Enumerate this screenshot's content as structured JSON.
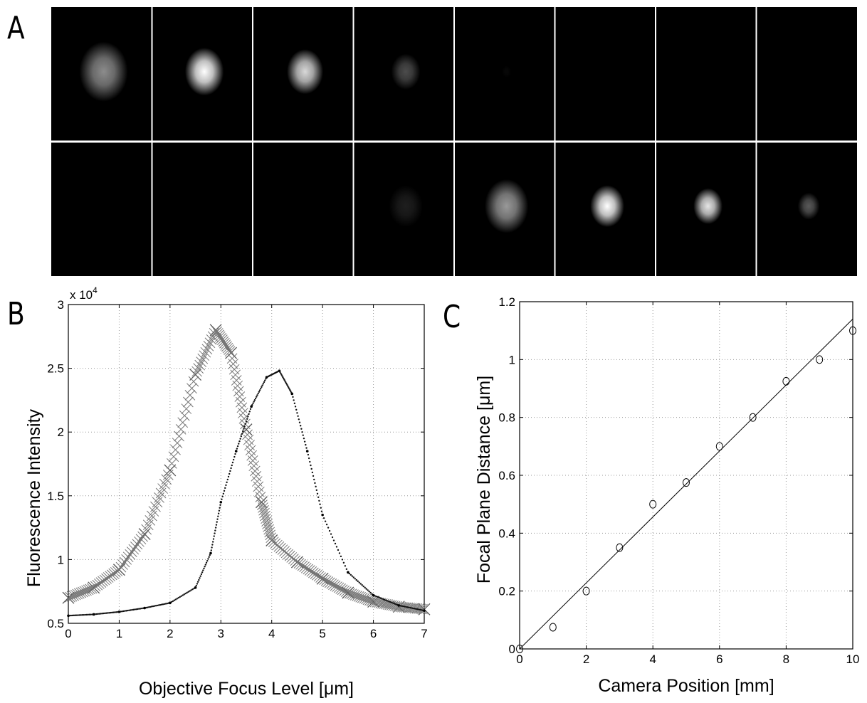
{
  "panel_labels": {
    "a": "A",
    "b": "B",
    "c": "C"
  },
  "chart_data": [
    {
      "type": "image-grid",
      "panel": "A",
      "rows": 2,
      "cols": 8,
      "spot_brightness": [
        [
          0.55,
          1.0,
          0.85,
          0.3,
          0.03,
          0,
          0,
          0
        ],
        [
          0,
          0,
          0,
          0.12,
          0.6,
          1.0,
          0.9,
          0.35
        ]
      ],
      "spot_size": [
        [
          1.0,
          0.8,
          0.75,
          0.6,
          0.2,
          0,
          0,
          0
        ],
        [
          0,
          0,
          0,
          0.7,
          0.9,
          0.7,
          0.6,
          0.45
        ]
      ]
    },
    {
      "type": "scatter",
      "panel": "B",
      "xlabel": "Objective Focus Level [μm]",
      "ylabel": "Fluorescence Intensity",
      "y_multiplier": "x 10",
      "y_multiplier_exp": "4",
      "xlim": [
        0,
        7
      ],
      "ylim": [
        0.5,
        3
      ],
      "xticks": [
        "0",
        "1",
        "2",
        "3",
        "4",
        "5",
        "6",
        "7"
      ],
      "yticks": [
        "0.5",
        "1",
        "1.5",
        "2",
        "2.5",
        "3"
      ],
      "grid": true,
      "series": [
        {
          "marker": "x",
          "x": [
            0,
            0.5,
            1,
            1.5,
            2,
            2.5,
            2.9,
            3.2,
            3.5,
            3.8,
            4,
            4.5,
            5,
            5.5,
            6,
            6.5,
            7
          ],
          "y": [
            0.7,
            0.78,
            0.92,
            1.2,
            1.7,
            2.45,
            2.8,
            2.62,
            2.02,
            1.45,
            1.15,
            0.98,
            0.85,
            0.74,
            0.67,
            0.63,
            0.61
          ]
        },
        {
          "marker": "dot",
          "x": [
            0,
            0.5,
            1,
            1.5,
            2,
            2.5,
            2.8,
            3,
            3.3,
            3.6,
            3.9,
            4.15,
            4.4,
            4.7,
            5,
            5.5,
            6,
            6.5,
            7
          ],
          "y": [
            0.56,
            0.57,
            0.59,
            0.62,
            0.66,
            0.78,
            1.05,
            1.45,
            1.85,
            2.2,
            2.43,
            2.48,
            2.3,
            1.85,
            1.35,
            0.9,
            0.72,
            0.64,
            0.6
          ]
        }
      ]
    },
    {
      "type": "scatter",
      "panel": "C",
      "xlabel": "Camera Position [mm]",
      "ylabel": "Focal Plane Distance [μm]",
      "xlim": [
        0,
        10
      ],
      "ylim": [
        0,
        1.2
      ],
      "xticks": [
        "0",
        "2",
        "4",
        "6",
        "8",
        "10"
      ],
      "yticks": [
        "0",
        "0.2",
        "0.4",
        "0.6",
        "0.8",
        "1",
        "1.2"
      ],
      "grid": true,
      "series": [
        {
          "marker": "o",
          "x": [
            0,
            1,
            2,
            3,
            4,
            5,
            6,
            7,
            8,
            9,
            10
          ],
          "y": [
            0,
            0.075,
            0.2,
            0.35,
            0.5,
            0.575,
            0.7,
            0.8,
            0.925,
            1.0,
            1.1
          ]
        }
      ],
      "fit_line": {
        "x": [
          0,
          10
        ],
        "y": [
          0.0,
          1.14
        ]
      }
    }
  ]
}
